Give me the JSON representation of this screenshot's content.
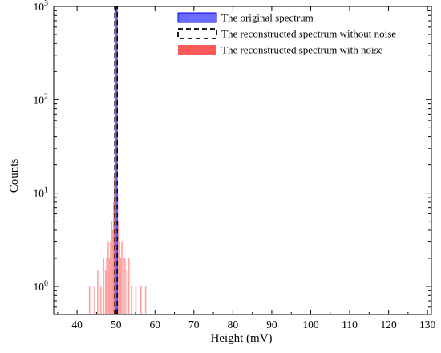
{
  "chart_data": {
    "type": "bar",
    "xlabel": "Height (mV)",
    "ylabel": "Counts",
    "xlim": [
      34,
      131
    ],
    "ylim": [
      0.5,
      1000
    ],
    "y_scale": "log",
    "grid": false,
    "legend_position": "top-right",
    "x_ticks": [
      40,
      50,
      60,
      70,
      80,
      90,
      100,
      110,
      120,
      130
    ],
    "y_ticks": [
      {
        "value": 1,
        "base": "10",
        "exp": "0"
      },
      {
        "value": 10,
        "base": "10",
        "exp": "1"
      },
      {
        "value": 100,
        "base": "10",
        "exp": "2"
      },
      {
        "value": 1000,
        "base": "10",
        "exp": "3"
      }
    ],
    "series": [
      {
        "name": "The original spectrum",
        "style": "filled",
        "color": "#6b6bff",
        "edge_color": "#0000ee",
        "points": [
          {
            "x": 50,
            "y": 1000
          }
        ]
      },
      {
        "name": "The reconstructed spectrum without noise",
        "style": "dashed",
        "color": "#000000",
        "points": [
          {
            "x": 50,
            "y": 1000
          }
        ]
      },
      {
        "name": "The reconstructed spectrum with noise",
        "style": "filled",
        "color": "#ff5a5a",
        "points": [
          {
            "x": 43.2,
            "y": 1
          },
          {
            "x": 44.5,
            "y": 1
          },
          {
            "x": 45.3,
            "y": 1.5
          },
          {
            "x": 46.1,
            "y": 1
          },
          {
            "x": 46.8,
            "y": 2
          },
          {
            "x": 47.3,
            "y": 1.5
          },
          {
            "x": 47.6,
            "y": 2
          },
          {
            "x": 48.0,
            "y": 3
          },
          {
            "x": 48.3,
            "y": 2
          },
          {
            "x": 48.6,
            "y": 3
          },
          {
            "x": 48.9,
            "y": 5
          },
          {
            "x": 49.2,
            "y": 4
          },
          {
            "x": 49.4,
            "y": 8
          },
          {
            "x": 49.6,
            "y": 15
          },
          {
            "x": 49.8,
            "y": 40
          },
          {
            "x": 49.9,
            "y": 120
          },
          {
            "x": 50.0,
            "y": 300
          },
          {
            "x": 50.1,
            "y": 60
          },
          {
            "x": 50.2,
            "y": 30
          },
          {
            "x": 50.4,
            "y": 10
          },
          {
            "x": 50.6,
            "y": 5
          },
          {
            "x": 50.9,
            "y": 3
          },
          {
            "x": 51.2,
            "y": 2
          },
          {
            "x": 51.5,
            "y": 3
          },
          {
            "x": 51.9,
            "y": 2
          },
          {
            "x": 52.3,
            "y": 2
          },
          {
            "x": 52.8,
            "y": 1.5
          },
          {
            "x": 53.3,
            "y": 2
          },
          {
            "x": 54.0,
            "y": 1
          },
          {
            "x": 55.1,
            "y": 1
          },
          {
            "x": 56.4,
            "y": 1
          },
          {
            "x": 57.6,
            "y": 1
          }
        ]
      }
    ]
  }
}
